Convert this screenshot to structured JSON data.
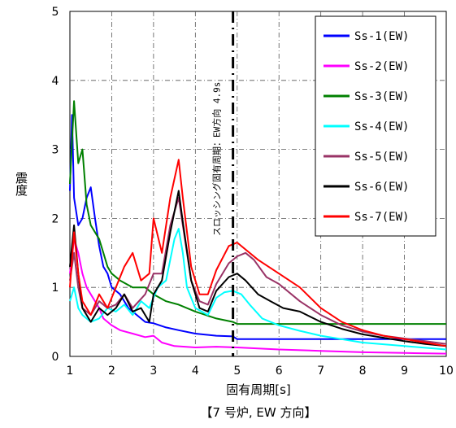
{
  "chart_data": {
    "type": "line",
    "xlabel": "固有周期[s]",
    "ylabel": "震度",
    "caption": "【7 号炉, EW 方向】",
    "xlim": [
      1,
      10
    ],
    "ylim": [
      0,
      5
    ],
    "xticks": [
      "1",
      "2",
      "3",
      "4",
      "5",
      "6",
      "7",
      "8",
      "9",
      "10"
    ],
    "yticks": [
      "0",
      "1",
      "2",
      "3",
      "4",
      "5"
    ],
    "grid": true,
    "legend_position": "top-right",
    "annotation": {
      "text": "スロッシング固有周期：EW方向 4.9s",
      "x": 4.9
    },
    "series": [
      {
        "name": "Ss-1(EW)",
        "color": "#0000ff",
        "points": [
          [
            1.0,
            2.4
          ],
          [
            1.05,
            3.5
          ],
          [
            1.1,
            2.3
          ],
          [
            1.2,
            1.9
          ],
          [
            1.3,
            2.0
          ],
          [
            1.4,
            2.3
          ],
          [
            1.5,
            2.45
          ],
          [
            1.6,
            2.0
          ],
          [
            1.7,
            1.6
          ],
          [
            1.8,
            1.3
          ],
          [
            1.9,
            1.2
          ],
          [
            2.0,
            1.0
          ],
          [
            2.1,
            0.95
          ],
          [
            2.2,
            0.9
          ],
          [
            2.4,
            0.7
          ],
          [
            2.6,
            0.6
          ],
          [
            2.8,
            0.5
          ],
          [
            3.0,
            0.48
          ],
          [
            3.3,
            0.42
          ],
          [
            3.6,
            0.38
          ],
          [
            4.0,
            0.33
          ],
          [
            4.5,
            0.3
          ],
          [
            4.9,
            0.29
          ],
          [
            5.0,
            0.25
          ],
          [
            6,
            0.25
          ],
          [
            8,
            0.25
          ],
          [
            10,
            0.25
          ]
        ]
      },
      {
        "name": "Ss-2(EW)",
        "color": "#ff00ff",
        "points": [
          [
            1.0,
            1.2
          ],
          [
            1.1,
            1.7
          ],
          [
            1.2,
            1.5
          ],
          [
            1.3,
            1.2
          ],
          [
            1.4,
            1.0
          ],
          [
            1.5,
            0.9
          ],
          [
            1.6,
            0.8
          ],
          [
            1.7,
            0.7
          ],
          [
            1.8,
            0.55
          ],
          [
            1.9,
            0.5
          ],
          [
            2.0,
            0.45
          ],
          [
            2.2,
            0.38
          ],
          [
            2.5,
            0.33
          ],
          [
            2.8,
            0.28
          ],
          [
            3.0,
            0.3
          ],
          [
            3.2,
            0.2
          ],
          [
            3.5,
            0.15
          ],
          [
            4.0,
            0.13
          ],
          [
            4.5,
            0.14
          ],
          [
            5.0,
            0.13
          ],
          [
            6,
            0.1
          ],
          [
            7,
            0.08
          ],
          [
            8,
            0.06
          ],
          [
            9,
            0.05
          ],
          [
            10,
            0.04
          ]
        ]
      },
      {
        "name": "Ss-3(EW)",
        "color": "#008000",
        "points": [
          [
            1.0,
            2.5
          ],
          [
            1.1,
            3.7
          ],
          [
            1.2,
            2.8
          ],
          [
            1.3,
            3.0
          ],
          [
            1.4,
            2.2
          ],
          [
            1.5,
            1.9
          ],
          [
            1.7,
            1.7
          ],
          [
            1.8,
            1.5
          ],
          [
            1.9,
            1.3
          ],
          [
            2.0,
            1.2
          ],
          [
            2.2,
            1.1
          ],
          [
            2.5,
            1.0
          ],
          [
            2.8,
            1.0
          ],
          [
            3.0,
            0.9
          ],
          [
            3.3,
            0.8
          ],
          [
            3.6,
            0.75
          ],
          [
            4.0,
            0.65
          ],
          [
            4.5,
            0.55
          ],
          [
            4.9,
            0.5
          ],
          [
            5.0,
            0.47
          ],
          [
            6,
            0.47
          ],
          [
            8,
            0.47
          ],
          [
            10,
            0.47
          ]
        ]
      },
      {
        "name": "Ss-4(EW)",
        "color": "#00ffff",
        "points": [
          [
            1.0,
            0.8
          ],
          [
            1.1,
            1.0
          ],
          [
            1.2,
            0.7
          ],
          [
            1.3,
            0.6
          ],
          [
            1.5,
            0.5
          ],
          [
            1.7,
            0.55
          ],
          [
            1.9,
            0.7
          ],
          [
            2.1,
            0.65
          ],
          [
            2.3,
            0.75
          ],
          [
            2.5,
            0.6
          ],
          [
            2.7,
            0.8
          ],
          [
            2.9,
            0.7
          ],
          [
            3.1,
            1.0
          ],
          [
            3.3,
            1.1
          ],
          [
            3.5,
            1.7
          ],
          [
            3.6,
            1.85
          ],
          [
            3.7,
            1.5
          ],
          [
            3.8,
            1.0
          ],
          [
            4.0,
            0.7
          ],
          [
            4.3,
            0.6
          ],
          [
            4.5,
            0.85
          ],
          [
            4.7,
            0.93
          ],
          [
            4.9,
            0.95
          ],
          [
            5.1,
            0.9
          ],
          [
            5.3,
            0.75
          ],
          [
            5.6,
            0.55
          ],
          [
            6.0,
            0.45
          ],
          [
            6.5,
            0.37
          ],
          [
            7,
            0.3
          ],
          [
            8,
            0.2
          ],
          [
            9,
            0.15
          ],
          [
            10,
            0.1
          ]
        ]
      },
      {
        "name": "Ss-5(EW)",
        "color": "#993366",
        "points": [
          [
            1.0,
            1.1
          ],
          [
            1.1,
            1.5
          ],
          [
            1.2,
            1.0
          ],
          [
            1.3,
            0.7
          ],
          [
            1.5,
            0.6
          ],
          [
            1.7,
            0.8
          ],
          [
            1.9,
            0.7
          ],
          [
            2.1,
            0.75
          ],
          [
            2.3,
            0.9
          ],
          [
            2.5,
            0.7
          ],
          [
            2.8,
            0.9
          ],
          [
            3.0,
            1.2
          ],
          [
            3.2,
            1.2
          ],
          [
            3.4,
            1.9
          ],
          [
            3.6,
            2.3
          ],
          [
            3.7,
            1.9
          ],
          [
            3.9,
            1.1
          ],
          [
            4.1,
            0.8
          ],
          [
            4.3,
            0.75
          ],
          [
            4.5,
            1.05
          ],
          [
            4.8,
            1.35
          ],
          [
            5.0,
            1.45
          ],
          [
            5.2,
            1.5
          ],
          [
            5.4,
            1.4
          ],
          [
            5.7,
            1.15
          ],
          [
            6.0,
            1.05
          ],
          [
            6.5,
            0.8
          ],
          [
            7,
            0.6
          ],
          [
            7.5,
            0.45
          ],
          [
            8,
            0.36
          ],
          [
            8.5,
            0.3
          ],
          [
            9,
            0.26
          ],
          [
            9.5,
            0.22
          ],
          [
            10,
            0.18
          ]
        ]
      },
      {
        "name": "Ss-6(EW)",
        "color": "#000000",
        "points": [
          [
            1.0,
            1.3
          ],
          [
            1.1,
            1.9
          ],
          [
            1.2,
            1.2
          ],
          [
            1.3,
            0.7
          ],
          [
            1.5,
            0.5
          ],
          [
            1.7,
            0.7
          ],
          [
            1.9,
            0.6
          ],
          [
            2.1,
            0.7
          ],
          [
            2.3,
            0.9
          ],
          [
            2.5,
            0.65
          ],
          [
            2.7,
            0.7
          ],
          [
            2.9,
            0.5
          ],
          [
            3.0,
            0.9
          ],
          [
            3.2,
            1.1
          ],
          [
            3.4,
            1.8
          ],
          [
            3.6,
            2.4
          ],
          [
            3.7,
            1.95
          ],
          [
            3.9,
            1.1
          ],
          [
            4.1,
            0.7
          ],
          [
            4.3,
            0.65
          ],
          [
            4.5,
            0.95
          ],
          [
            4.8,
            1.15
          ],
          [
            5.0,
            1.2
          ],
          [
            5.2,
            1.1
          ],
          [
            5.5,
            0.9
          ],
          [
            5.8,
            0.8
          ],
          [
            6.1,
            0.7
          ],
          [
            6.5,
            0.65
          ],
          [
            7,
            0.5
          ],
          [
            7.5,
            0.4
          ],
          [
            8,
            0.32
          ],
          [
            8.5,
            0.27
          ],
          [
            9,
            0.22
          ],
          [
            9.5,
            0.18
          ],
          [
            10,
            0.15
          ]
        ]
      },
      {
        "name": "Ss-7(EW)",
        "color": "#ff0000",
        "points": [
          [
            1.0,
            1.0
          ],
          [
            1.1,
            1.8
          ],
          [
            1.2,
            1.2
          ],
          [
            1.3,
            0.8
          ],
          [
            1.5,
            0.6
          ],
          [
            1.7,
            0.9
          ],
          [
            1.9,
            0.7
          ],
          [
            2.1,
            1.0
          ],
          [
            2.3,
            1.3
          ],
          [
            2.5,
            1.5
          ],
          [
            2.7,
            1.1
          ],
          [
            2.9,
            1.2
          ],
          [
            3.0,
            2.0
          ],
          [
            3.2,
            1.5
          ],
          [
            3.4,
            2.3
          ],
          [
            3.6,
            2.85
          ],
          [
            3.7,
            2.3
          ],
          [
            3.9,
            1.3
          ],
          [
            4.1,
            0.9
          ],
          [
            4.3,
            0.9
          ],
          [
            4.5,
            1.25
          ],
          [
            4.8,
            1.6
          ],
          [
            5.0,
            1.65
          ],
          [
            5.2,
            1.55
          ],
          [
            5.5,
            1.4
          ],
          [
            6.0,
            1.2
          ],
          [
            6.5,
            1.0
          ],
          [
            7,
            0.7
          ],
          [
            7.5,
            0.5
          ],
          [
            8,
            0.38
          ],
          [
            8.5,
            0.3
          ],
          [
            9,
            0.25
          ],
          [
            9.5,
            0.2
          ],
          [
            10,
            0.15
          ]
        ]
      }
    ]
  }
}
